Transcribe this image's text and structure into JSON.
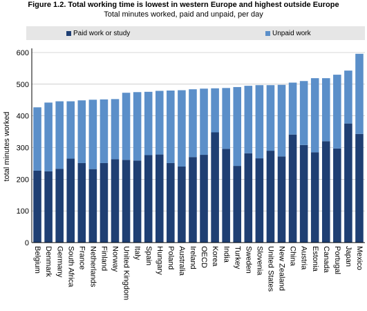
{
  "chart_data": {
    "type": "bar",
    "stacked": true,
    "title": "Figure 1.2. Total working time is lowest in western Europe and highest outside Europe",
    "subtitle": "Total minutes worked, paid and unpaid, per day",
    "ylabel": "total minutes worked",
    "ylim": [
      0,
      600
    ],
    "yticks": [
      0,
      100,
      200,
      300,
      400,
      500,
      600
    ],
    "legend_position": "top",
    "grid": true,
    "categories": [
      "Belgium",
      "Denmark",
      "Germany",
      "South Africa",
      "France",
      "Netherlands",
      "Finland",
      "Norway",
      "United Kingdom",
      "Italy",
      "Spain",
      "Hungary",
      "Poland",
      "Australia",
      "Ireland",
      "OECD",
      "Korea",
      "India",
      "Turkey",
      "Sweden",
      "Slovenia",
      "United States",
      "New Zealand",
      "China",
      "Austria",
      "Estonia",
      "Canada",
      "Portugal",
      "Japan",
      "Mexico"
    ],
    "series": [
      {
        "name": "Paid work or study",
        "color": "#1f3f73",
        "values": [
          227,
          225,
          233,
          265,
          251,
          232,
          251,
          263,
          261,
          259,
          276,
          278,
          251,
          240,
          270,
          277,
          348,
          296,
          242,
          282,
          266,
          290,
          272,
          341,
          308,
          285,
          320,
          297,
          376,
          343
        ]
      },
      {
        "name": "Unpaid work",
        "color": "#5b8fc9",
        "values": [
          200,
          217,
          213,
          181,
          198,
          219,
          201,
          190,
          212,
          216,
          200,
          201,
          229,
          241,
          214,
          209,
          139,
          192,
          249,
          213,
          231,
          207,
          226,
          164,
          202,
          234,
          199,
          233,
          167,
          253
        ]
      }
    ]
  }
}
